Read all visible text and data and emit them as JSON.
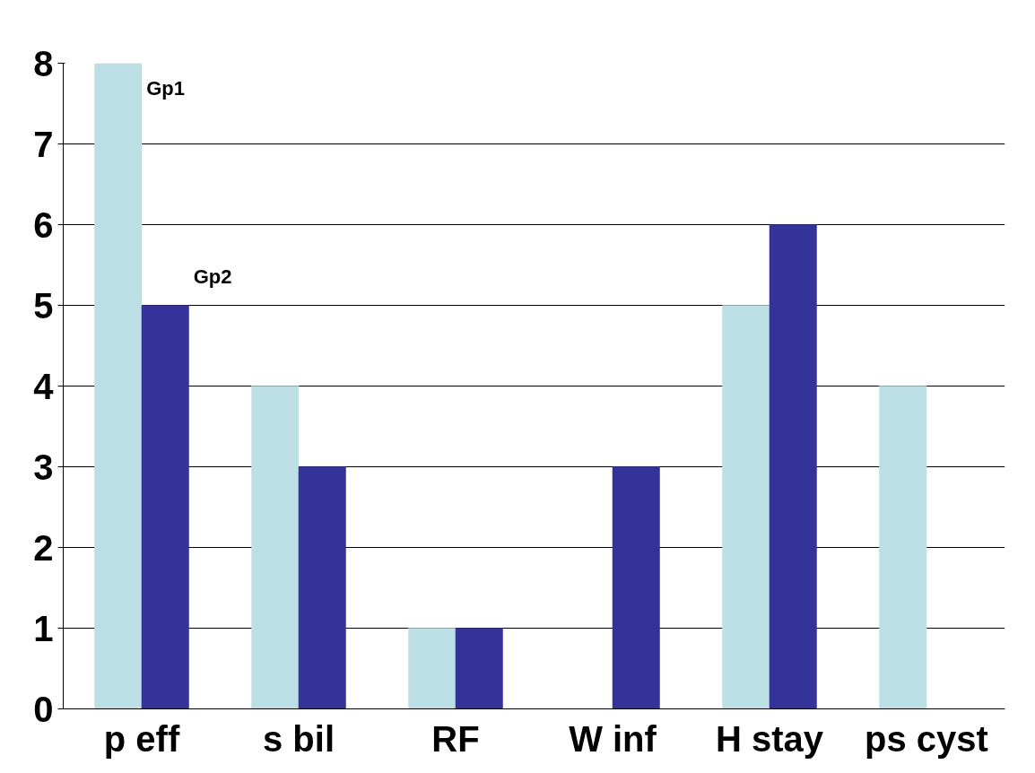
{
  "chart_data": {
    "type": "bar",
    "categories": [
      "p eff",
      "s bil",
      "RF",
      "W inf",
      "H stay",
      "ps cyst"
    ],
    "series": [
      {
        "name": "Gp1",
        "color": "#bcdfe5",
        "values": [
          8,
          4,
          1,
          0,
          5,
          4
        ]
      },
      {
        "name": "Gp2",
        "color": "#343399",
        "values": [
          5,
          3,
          1,
          3,
          6,
          0
        ]
      }
    ],
    "ylim": [
      0,
      8
    ],
    "yticks": [
      0,
      1,
      2,
      3,
      4,
      5,
      6,
      7,
      8
    ],
    "grid": "y",
    "legend": false
  }
}
